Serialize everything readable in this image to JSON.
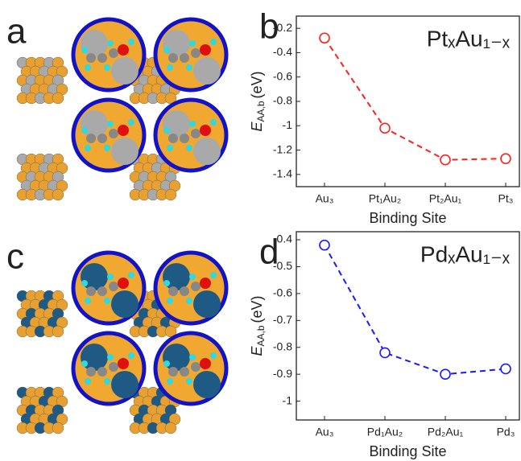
{
  "panel_labels": [
    "a",
    "b",
    "c",
    "d"
  ],
  "chart_data": [
    {
      "type": "line",
      "annotation": "PtₓAu₁₋ₓ",
      "ylabel": {
        "symbol": "E",
        "subscript": "AA,b",
        "unit": "(eV)"
      },
      "xlabel": "Binding Site",
      "categories": [
        "Au₃",
        "Pt₁Au₂",
        "Pt₂Au₁",
        "Pt₃"
      ],
      "values": [
        -0.28,
        -1.02,
        -1.28,
        -1.27
      ],
      "color": "#ff2020",
      "ylim": [
        -1.5,
        -0.1
      ],
      "yticks": [
        -0.2,
        -0.4,
        -0.6,
        -0.8,
        -1.0,
        -1.2,
        -1.4
      ]
    },
    {
      "type": "line",
      "annotation": "PdₓAu₁₋ₓ",
      "ylabel": {
        "symbol": "E",
        "subscript": "AA,b",
        "unit": "(eV)"
      },
      "xlabel": "Binding Site",
      "categories": [
        "Au₃",
        "Pd₁Au₂",
        "Pd₂Au₁",
        "Pd₃"
      ],
      "values": [
        -0.42,
        -0.82,
        -0.9,
        -0.88
      ],
      "color": "#1a1aff",
      "ylim": [
        -1.07,
        -0.37
      ],
      "yticks": [
        -0.4,
        -0.5,
        -0.6,
        -0.7,
        -0.8,
        -0.9,
        -1.0
      ]
    }
  ]
}
